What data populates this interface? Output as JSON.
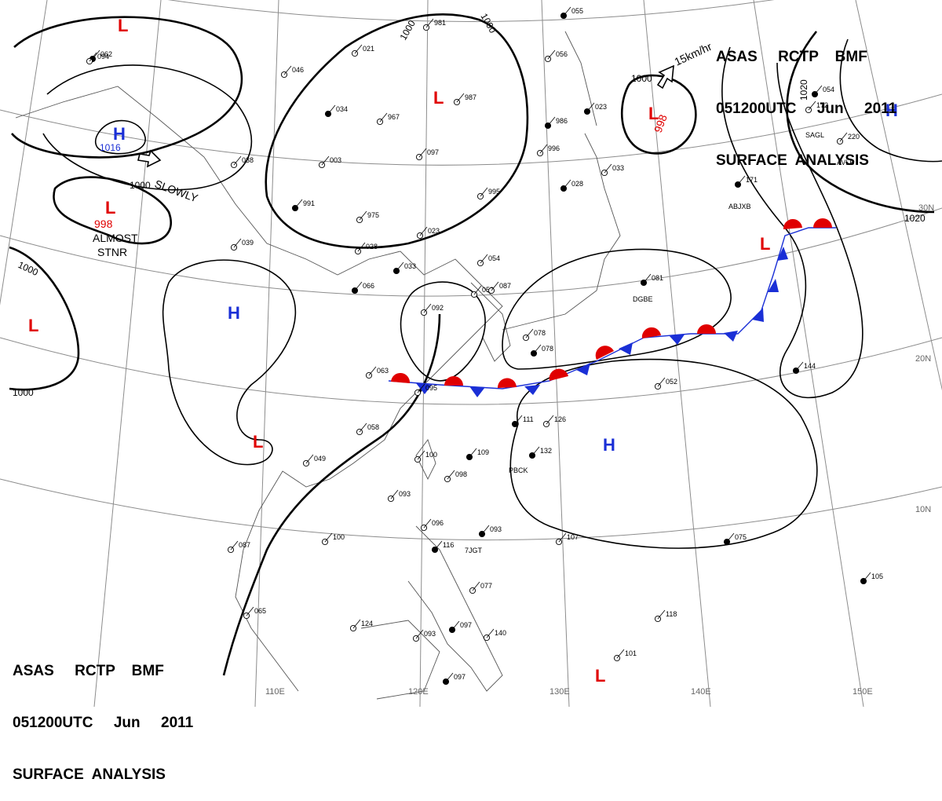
{
  "header": {
    "line1": "ASAS     RCTP    BMF",
    "line2": "051200UTC     Jun     2011",
    "line3": "SURFACE  ANALYSIS"
  },
  "colors": {
    "low": "#e00000",
    "high": "#1a2fd6",
    "isobar": "#000000",
    "grid": "#8c8c8c",
    "coast": "#555555"
  },
  "lon_labels": [
    "110E",
    "120E",
    "130E",
    "140E",
    "150E"
  ],
  "lat_labels": [
    "20N",
    "10N",
    "30N"
  ],
  "isobar_labels": [
    "1000",
    "1000",
    "1000",
    "1000",
    "1000",
    "1000",
    "1020",
    "1020",
    "1016"
  ],
  "pressure_centers": [
    {
      "kind": "L",
      "icon": "low-center-mark"
    },
    {
      "kind": "L",
      "icon": "low-center-mark",
      "value": "998",
      "note": "ALMOST\nSTNR"
    },
    {
      "kind": "L",
      "icon": "low-center-mark"
    },
    {
      "kind": "L",
      "icon": "low-center-mark",
      "value": "998"
    },
    {
      "kind": "L",
      "icon": "low-center-mark"
    },
    {
      "kind": "L",
      "icon": "low-center-mark"
    },
    {
      "kind": "L",
      "icon": "low-center-mark"
    },
    {
      "kind": "H",
      "icon": "high-center-mark",
      "value": "1016"
    },
    {
      "kind": "H",
      "icon": "high-center-mark"
    },
    {
      "kind": "H",
      "icon": "high-center-mark"
    },
    {
      "kind": "H",
      "icon": "high-center-mark"
    }
  ],
  "motion_labels": [
    "SLOWLY",
    "15km/hr"
  ],
  "station_values": [
    "062",
    "046",
    "021",
    "034",
    "967",
    "981",
    "055",
    "056",
    "987",
    "023",
    "003",
    "038",
    "991",
    "975",
    "097",
    "986",
    "996",
    "033",
    "028",
    "995",
    "023",
    "171",
    "039",
    "028",
    "033",
    "054",
    "058",
    "066",
    "087",
    "092",
    "081",
    "063",
    "078",
    "078",
    "095",
    "058",
    "111",
    "126",
    "049",
    "109",
    "100",
    "098",
    "132",
    "093",
    "100",
    "093",
    "107",
    "096",
    "116",
    "087",
    "065",
    "075",
    "124",
    "093",
    "097",
    "140",
    "077",
    "105",
    "118",
    "101",
    "097",
    "094",
    "052",
    "144",
    "172",
    "220",
    "054"
  ],
  "station_codes": [
    "DGBE",
    "PBCK",
    "7JGT",
    "ABJXB",
    "SAGL",
    "AVLB"
  ]
}
